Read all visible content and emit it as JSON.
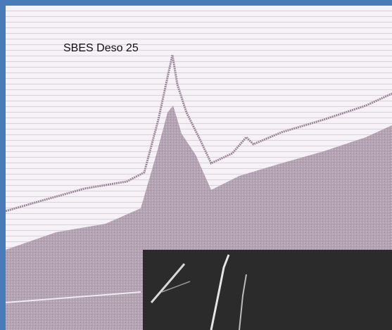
{
  "label": "SBES Deso 25"
}
